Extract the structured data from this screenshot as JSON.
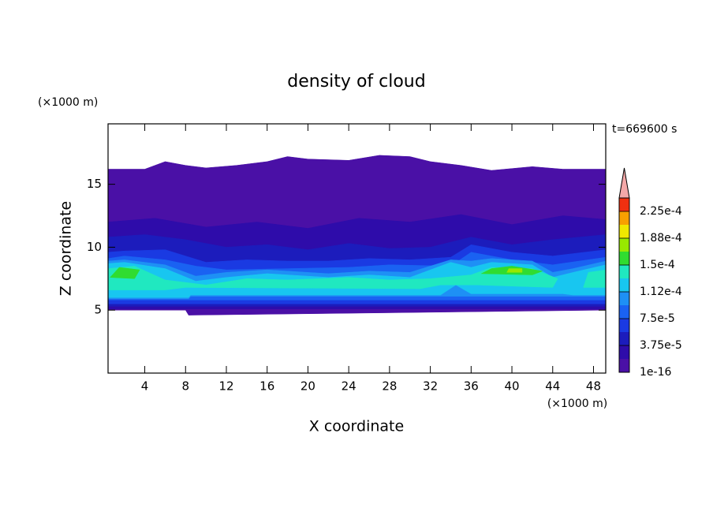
{
  "chart_data": {
    "type": "contour",
    "title": "density of cloud",
    "x_label": "X coordinate",
    "y_label": "Z coordinate",
    "x_unit": "(×1000 m)",
    "y_unit": "(×1000 m)",
    "time_label": "t=669600 s",
    "xlim": [
      0.4,
      49.2
    ],
    "ylim": [
      0,
      19.8
    ],
    "xticks": [
      4,
      8,
      12,
      16,
      20,
      24,
      28,
      32,
      36,
      40,
      44,
      48
    ],
    "yticks": [
      5,
      10,
      15
    ],
    "levels": [
      1e-16,
      1.875e-05,
      3.75e-05,
      5.625e-05,
      7.5e-05,
      9.375e-05,
      0.0001125,
      0.00013125,
      0.00015,
      0.00016875,
      0.0001875,
      0.00020625,
      0.000225,
      0.00024375
    ],
    "colors": [
      "#4a10a6",
      "#2e0caa",
      "#1c1cbc",
      "#1a3ae2",
      "#1a62f2",
      "#1e90f5",
      "#18c6f0",
      "#20e8c0",
      "#30dc30",
      "#98e800",
      "#f0e800",
      "#f8a000",
      "#f03010"
    ],
    "extend_color": "#f4a8a8",
    "cbticks": [
      {
        "value": 1e-16,
        "label": "1e-16"
      },
      {
        "value": 3.75e-05,
        "label": "3.75e-5"
      },
      {
        "value": 7.5e-05,
        "label": "7.5e-5"
      },
      {
        "value": 0.0001125,
        "label": "1.12e-4"
      },
      {
        "value": 0.00015,
        "label": "1.5e-4"
      },
      {
        "value": 0.0001875,
        "label": "1.88e-4"
      },
      {
        "value": 0.000225,
        "label": "2.25e-4"
      }
    ],
    "regions": [
      {
        "level": 0,
        "x": [
          0.4,
          8,
          8.3,
          49.2,
          49.2,
          45,
          42,
          38,
          35,
          32,
          30,
          27,
          24,
          20,
          18,
          16,
          13,
          10,
          8,
          6,
          4,
          0.4
        ],
        "z": [
          5,
          5,
          4.6,
          5,
          16.2,
          16.2,
          16.4,
          16.1,
          16.5,
          16.8,
          17.2,
          17.3,
          16.9,
          17.0,
          17.2,
          16.8,
          16.5,
          16.3,
          16.5,
          16.8,
          16.2,
          16.2
        ]
      },
      {
        "level": 1,
        "x": [
          0.4,
          49.2,
          49.2,
          45,
          40,
          35,
          30,
          25,
          20,
          15,
          10,
          5,
          0.4
        ],
        "z": [
          5.1,
          5.1,
          12.2,
          12.5,
          11.8,
          12.6,
          12.0,
          12.3,
          11.5,
          12.0,
          11.6,
          12.3,
          12.0
        ]
      },
      {
        "level": 2,
        "x": [
          0.4,
          49.2,
          49.2,
          44,
          40,
          36,
          32,
          28,
          24,
          20,
          16,
          12,
          8,
          4,
          0.4
        ],
        "z": [
          5.3,
          5.3,
          11.0,
          10.6,
          10.2,
          10.8,
          10.0,
          9.9,
          10.3,
          9.8,
          10.2,
          10.0,
          10.6,
          11.0,
          10.8
        ]
      },
      {
        "level": 3,
        "x": [
          0.4,
          49.2,
          49.2,
          44,
          40,
          36,
          34,
          30,
          26,
          22,
          18,
          14,
          10,
          6,
          2,
          0.4
        ],
        "z": [
          5.5,
          5.5,
          9.8,
          9.3,
          9.6,
          10.2,
          9.2,
          9.0,
          9.1,
          8.9,
          8.9,
          9.0,
          8.8,
          9.8,
          9.7,
          9.6
        ]
      },
      {
        "level": 4,
        "x": [
          0.4,
          49.2,
          49.2,
          44,
          40,
          36,
          34,
          28,
          24,
          18,
          12,
          9,
          6,
          2,
          0.4
        ],
        "z": [
          5.8,
          5.8,
          9.2,
          8.6,
          9.0,
          9.6,
          8.5,
          8.6,
          8.4,
          8.3,
          8.2,
          8.5,
          9.0,
          9.3,
          9.1
        ]
      },
      {
        "level": 5,
        "x": [
          0.4,
          8.3,
          8.5,
          49.2,
          49.2,
          46,
          44,
          42,
          38,
          36,
          34,
          30,
          26,
          22,
          16,
          12,
          9,
          6,
          2,
          0.4
        ],
        "z": [
          5.9,
          5.9,
          6.1,
          6.1,
          8.9,
          8.3,
          8.0,
          8.9,
          9.1,
          8.9,
          9.0,
          8.0,
          8.1,
          7.9,
          8.2,
          8.0,
          7.7,
          8.6,
          9.0,
          8.9
        ]
      },
      {
        "level": 6,
        "x": [
          0.4,
          8.3,
          8.5,
          33,
          34.5,
          36,
          45,
          46,
          49.2,
          49.2,
          46,
          44,
          42,
          38,
          36,
          34,
          30,
          26,
          22,
          16,
          12,
          9,
          6,
          2,
          0.4
        ],
        "z": [
          6.0,
          6.0,
          6.2,
          6.2,
          7.0,
          6.3,
          6.3,
          6.2,
          6.2,
          8.6,
          8.0,
          7.6,
          8.6,
          8.8,
          8.4,
          8.8,
          7.6,
          7.8,
          7.6,
          7.9,
          7.6,
          7.3,
          8.3,
          8.8,
          8.7
        ]
      },
      {
        "level": 7,
        "x": [
          0.4,
          6,
          8,
          31,
          33,
          36.5,
          44,
          44.5,
          42,
          38,
          36,
          32,
          28,
          24,
          18,
          14,
          10,
          6,
          3,
          0.4
        ],
        "z": [
          6.6,
          6.6,
          6.8,
          6.7,
          7.0,
          7.0,
          6.8,
          7.5,
          8.3,
          8.4,
          7.8,
          7.5,
          7.4,
          7.6,
          7.4,
          7.5,
          7.0,
          7.4,
          8.5,
          8.3
        ]
      },
      {
        "level": 7,
        "x": [
          47,
          49.2,
          49.2,
          47.5
        ],
        "z": [
          6.8,
          6.8,
          8.2,
          8.0
        ]
      },
      {
        "level": 8,
        "x": [
          0.6,
          3,
          3.5,
          1.5
        ],
        "z": [
          7.6,
          7.5,
          8.2,
          8.4
        ]
      },
      {
        "level": 8,
        "x": [
          37,
          42,
          43,
          40,
          38
        ],
        "z": [
          7.9,
          7.8,
          8.1,
          8.5,
          8.3
        ]
      },
      {
        "level": 9,
        "x": [
          39.5,
          41,
          41,
          39.7
        ],
        "z": [
          8.0,
          8.0,
          8.3,
          8.3
        ]
      }
    ]
  }
}
